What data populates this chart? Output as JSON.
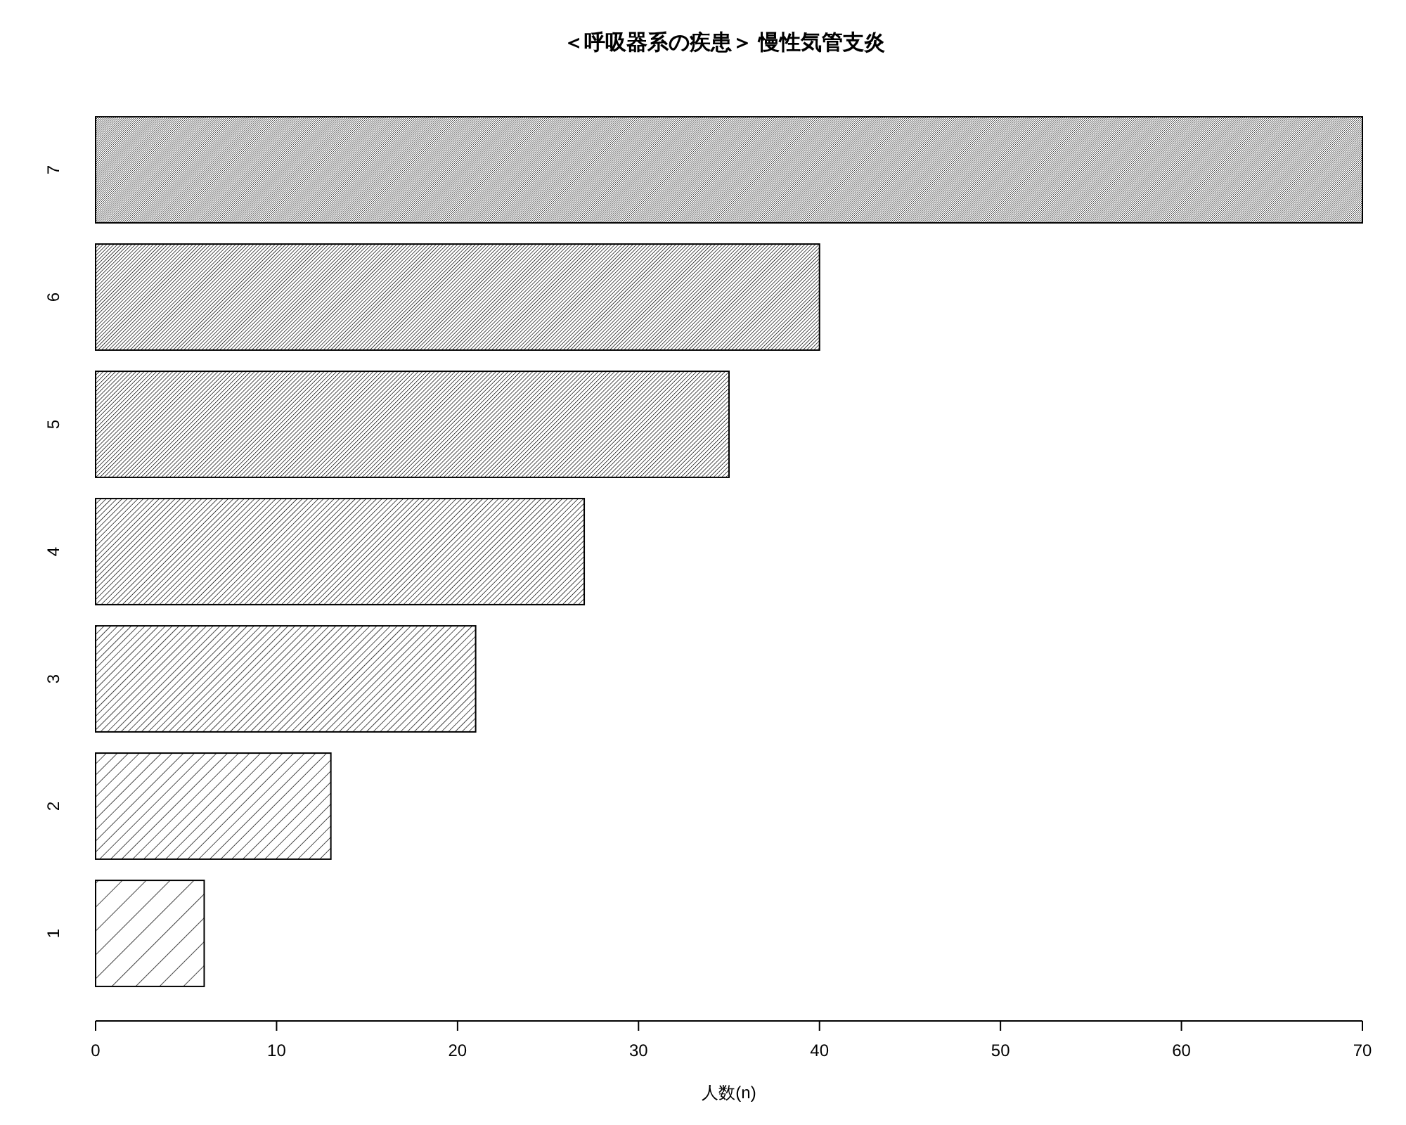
{
  "chart_data": {
    "type": "bar",
    "orientation": "horizontal",
    "title": "＜呼吸器系の疾患＞ 慢性気管支炎",
    "xlabel": "人数(n)",
    "categories": [
      "7",
      "6",
      "5",
      "4",
      "3",
      "2",
      "1"
    ],
    "values": [
      70,
      40,
      35,
      27,
      21,
      13,
      6
    ],
    "color": "#000000",
    "xlim": [
      0,
      70
    ],
    "xticks": [
      0,
      10,
      20,
      30,
      40,
      50,
      60,
      70
    ]
  }
}
